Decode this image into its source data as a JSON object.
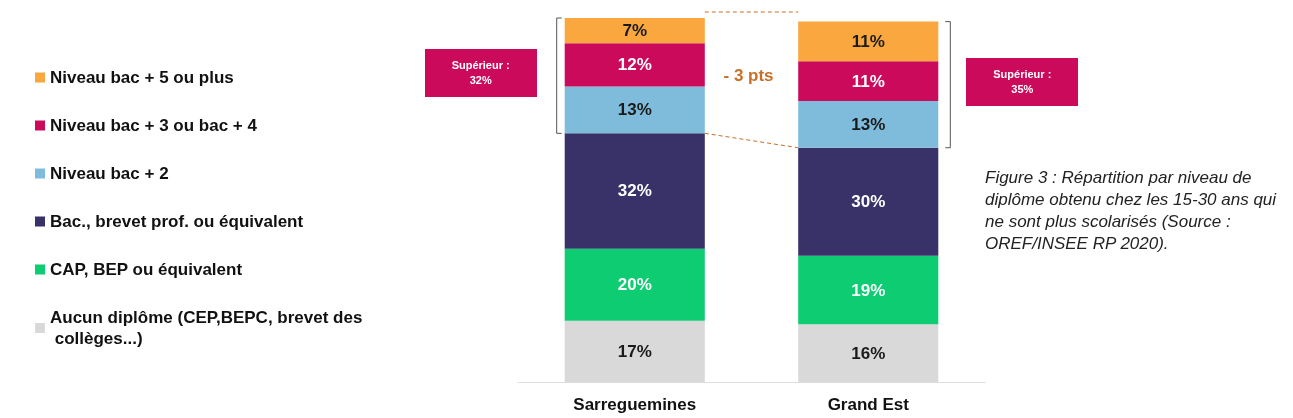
{
  "chart_data": {
    "type": "bar",
    "stacked": true,
    "legend": "left",
    "categories": [
      "Sarreguemines",
      "Grand Est"
    ],
    "series": [
      {
        "name": "Aucun diplôme (CEP,BEPC, brevet des collèges...)",
        "color": "#d9d9d9",
        "values": [
          17,
          16
        ],
        "value_labels": [
          "17%",
          "16%"
        ]
      },
      {
        "name": "CAP, BEP ou équivalent",
        "color": "#0dcc72",
        "values": [
          20,
          19
        ],
        "value_labels": [
          "20%",
          "19%"
        ]
      },
      {
        "name": "Bac., brevet prof. ou équivalent",
        "color": "#383268",
        "values": [
          32,
          30
        ],
        "value_labels": [
          "32%",
          "30%"
        ]
      },
      {
        "name": "Niveau bac + 2",
        "color": "#7fbcdc",
        "values": [
          13,
          13
        ],
        "value_labels": [
          "13%",
          "13%"
        ]
      },
      {
        "name": "Niveau bac + 3 ou bac + 4",
        "color": "#cc0a5c",
        "values": [
          12,
          11
        ],
        "value_labels": [
          "12%",
          "11%"
        ]
      },
      {
        "name": "Niveau bac + 5 ou plus",
        "color": "#f9a73e",
        "values": [
          7,
          11
        ],
        "value_labels": [
          "7%",
          "11%"
        ]
      }
    ],
    "annotations": [
      "Supérieur : 32%",
      "- 3 pts",
      "Supérieur : 35%",
      "Figure 3 : Répartition par niveau de diplôme obtenu chez les 15-30 ans qui ne sont plus scolarisés (Source : OREF/INSEE RP 2020)."
    ]
  }
}
